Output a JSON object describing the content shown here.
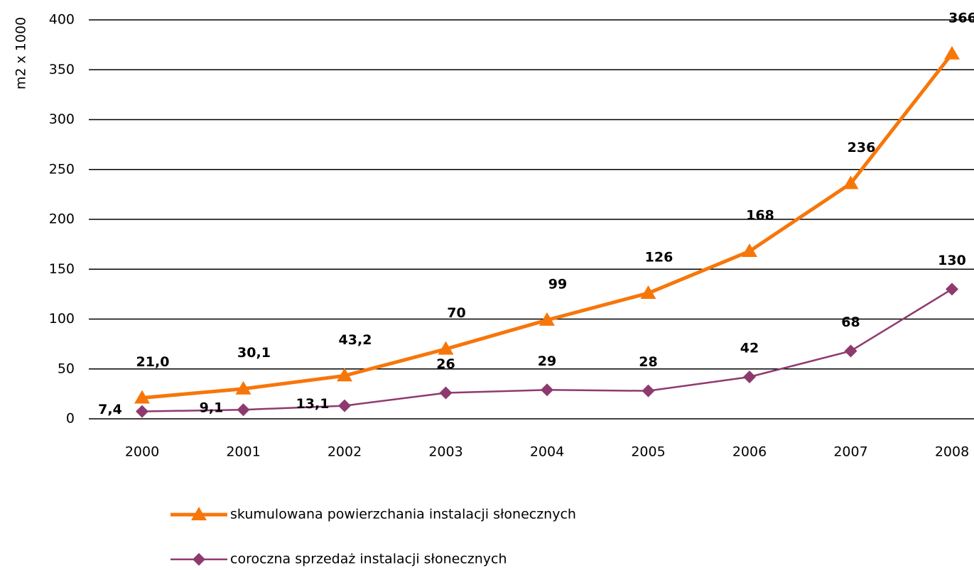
{
  "chart_data": {
    "type": "line",
    "y_label": "m2 x 1000",
    "categories": [
      "2000",
      "2001",
      "2002",
      "2003",
      "2004",
      "2005",
      "2006",
      "2007",
      "2008"
    ],
    "series": [
      {
        "name": "skumulowana powierzchania instalacji słonecznych",
        "color": "#f7760a",
        "marker": "triangle",
        "values": [
          21.0,
          30.1,
          43.2,
          70,
          99,
          126,
          168,
          236,
          366
        ],
        "value_labels": [
          "21,0",
          "30,1",
          "43,2",
          "70",
          "99",
          "126",
          "168",
          "236",
          "366"
        ]
      },
      {
        "name": "coroczna sprzedaż instalacji słonecznych",
        "color": "#8e3a6e",
        "marker": "diamond",
        "values": [
          7.4,
          9.1,
          13.1,
          26,
          29,
          28,
          42,
          68,
          130
        ],
        "value_labels": [
          "7,4",
          "9,1",
          "13,1",
          "26",
          "29",
          "28",
          "42",
          "68",
          "130"
        ]
      }
    ],
    "ylim": [
      0,
      400
    ],
    "yticks": [
      0,
      50,
      100,
      150,
      200,
      250,
      300,
      350,
      400
    ],
    "grid": true
  }
}
